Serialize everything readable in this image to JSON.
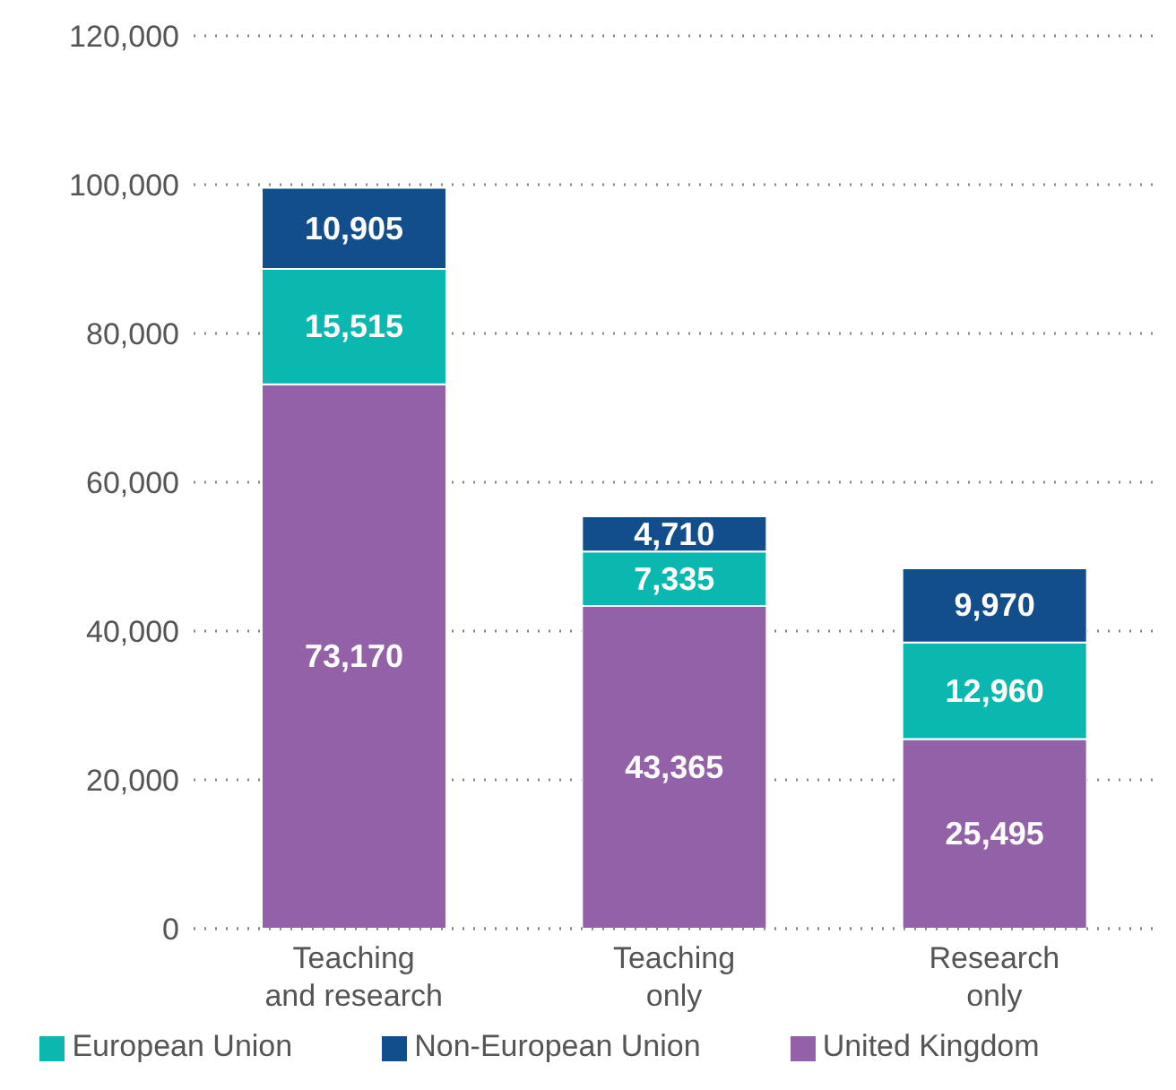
{
  "chart_data": {
    "type": "bar",
    "stacked": true,
    "categories": [
      "Teaching and research",
      "Teaching only",
      "Research only"
    ],
    "series": [
      {
        "name": "United Kingdom",
        "color": "#9361a8",
        "values": [
          73170,
          43365,
          25495
        ],
        "value_labels": [
          "73,170",
          "43,365",
          "25,495"
        ]
      },
      {
        "name": "European Union",
        "color": "#0bb8b0",
        "values": [
          15515,
          7335,
          12960
        ],
        "value_labels": [
          "15,515",
          "7,335",
          "12,960"
        ]
      },
      {
        "name": "Non-European Union",
        "color": "#134e8c",
        "values": [
          10905,
          4710,
          9970
        ],
        "value_labels": [
          "10,905",
          "4,710",
          "9,970"
        ]
      }
    ],
    "ylim": [
      0,
      120000
    ],
    "yticks": [
      {
        "value": 0,
        "label": "0"
      },
      {
        "value": 20000,
        "label": "20,000"
      },
      {
        "value": 40000,
        "label": "40,000"
      },
      {
        "value": 60000,
        "label": "60,000"
      },
      {
        "value": 80000,
        "label": "80,000"
      },
      {
        "value": 100000,
        "label": "100,000"
      },
      {
        "value": 120000,
        "label": "120,000"
      }
    ],
    "grid": "y",
    "legend": "bottom"
  }
}
